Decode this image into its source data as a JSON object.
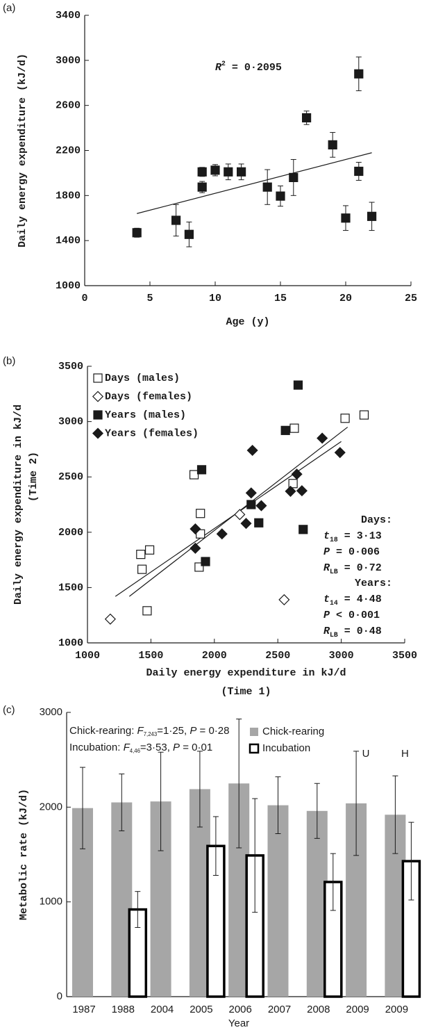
{
  "chart_data": [
    {
      "type": "scatter",
      "panel_label": "(a)",
      "xlabel": "Age (y)",
      "ylabel": "Daily energy expenditure (kJ/d)",
      "annotation": {
        "symbol": "R",
        "sup": "2",
        "text": " = 0·2095"
      },
      "xlim": [
        0,
        25
      ],
      "xticks": [
        0,
        5,
        10,
        15,
        20,
        25
      ],
      "ylim": [
        1000,
        3400
      ],
      "yticks": [
        1000,
        1400,
        1800,
        2200,
        2600,
        3000,
        3400
      ],
      "series": [
        {
          "color": "#1a1a1a",
          "marker": "square",
          "filled": true,
          "x": [
            4,
            7,
            8,
            9,
            9,
            10,
            11,
            12,
            14,
            15,
            16,
            17,
            19,
            20,
            21,
            21,
            22
          ],
          "values": [
            1470,
            1580,
            1455,
            2010,
            1875,
            2025,
            2010,
            2010,
            1875,
            1795,
            1960,
            2490,
            2250,
            1600,
            2880,
            2015,
            1615
          ],
          "errors": [
            40,
            140,
            110,
            40,
            50,
            50,
            70,
            70,
            155,
            90,
            160,
            60,
            110,
            110,
            150,
            80,
            125
          ]
        }
      ],
      "trendlines": [
        {
          "x": [
            4,
            22
          ],
          "values": [
            1640,
            2180
          ]
        }
      ]
    },
    {
      "type": "scatter",
      "panel_label": "(b)",
      "xlabel": [
        "Daily energy expenditure in kJ/d",
        "(Time 1)"
      ],
      "ylabel": [
        "Daily energy expenditure in kJ/d",
        "(Time 2)"
      ],
      "xlim": [
        1000,
        3500
      ],
      "xticks": [
        1000,
        1500,
        2000,
        2500,
        3000,
        3500
      ],
      "ylim": [
        1000,
        3500
      ],
      "yticks": [
        1000,
        1500,
        2000,
        2500,
        3000,
        3500
      ],
      "series": [
        {
          "name": "Days (males)",
          "color": "#1a1a1a",
          "marker": "square",
          "filled": false,
          "x": [
            1420,
            1430,
            1490,
            1470,
            1840,
            1890,
            1890,
            1880,
            2620,
            2630,
            3030,
            3180
          ],
          "values": [
            1800,
            1665,
            1840,
            1290,
            2520,
            2170,
            1985,
            1685,
            2440,
            2940,
            3030,
            3060
          ]
        },
        {
          "name": "Days (females)",
          "color": "#1a1a1a",
          "marker": "diamond",
          "filled": false,
          "x": [
            1180,
            2200,
            2550
          ],
          "values": [
            1215,
            2160,
            1390
          ]
        },
        {
          "name": "Years (males)",
          "color": "#1a1a1a",
          "marker": "square",
          "filled": true,
          "x": [
            1900,
            1930,
            2290,
            2350,
            2560,
            2660,
            2700
          ],
          "values": [
            2565,
            1735,
            2250,
            2085,
            2920,
            3330,
            2025
          ]
        },
        {
          "name": "Years (females)",
          "color": "#1a1a1a",
          "marker": "diamond",
          "filled": true,
          "x": [
            1850,
            1850,
            2060,
            2250,
            2290,
            2300,
            2370,
            2600,
            2650,
            2690,
            2850,
            2990
          ],
          "values": [
            2030,
            1855,
            1985,
            2080,
            2355,
            2740,
            2240,
            2370,
            2525,
            2375,
            2850,
            2720
          ]
        }
      ],
      "trendlines": [
        {
          "x": [
            1220,
            3000
          ],
          "values": [
            1420,
            2820
          ]
        },
        {
          "x": [
            1330,
            3050
          ],
          "values": [
            1420,
            2950
          ]
        }
      ],
      "annotations": [
        {
          "heading": "Days:",
          "lines": [
            {
              "symbol": "t",
              "sub": "18",
              "text": " = 3·13"
            },
            {
              "symbol": "P",
              "text": " = 0·006"
            },
            {
              "symbol": "R",
              "sub": "LB",
              "text": " = 0·72"
            }
          ]
        },
        {
          "heading": "Years:",
          "lines": [
            {
              "symbol": "t",
              "sub": "14",
              "text": " = 4·48"
            },
            {
              "symbol": "P",
              "text": " < 0·001"
            },
            {
              "symbol": "R",
              "sub": "LB",
              "text": " = 0·48"
            }
          ]
        }
      ]
    },
    {
      "type": "bar",
      "panel_label": "(c)",
      "xlabel": "Year",
      "ylabel": "Metabolic rate (kJ/d)",
      "categories": [
        "1987",
        "1988",
        "2004",
        "2005",
        "2006",
        "2007",
        "2008",
        "2009",
        "2009"
      ],
      "ylim": [
        0,
        3000
      ],
      "yticks": [
        0,
        1000,
        2000,
        3000
      ],
      "series": [
        {
          "name": "Chick-rearing",
          "color": "#a6a6a6",
          "filled": true,
          "values": [
            1990,
            2050,
            2060,
            2190,
            2250,
            2020,
            1960,
            2040,
            1920
          ],
          "errors": [
            430,
            300,
            520,
            400,
            680,
            300,
            290,
            550,
            410
          ]
        },
        {
          "name": "Incubation",
          "color": "#000000",
          "filled": false,
          "values": [
            null,
            920,
            null,
            1590,
            1490,
            null,
            1210,
            null,
            1430
          ],
          "errors": [
            null,
            190,
            null,
            310,
            600,
            null,
            300,
            null,
            410
          ]
        }
      ],
      "value_notes": [
        null,
        null,
        null,
        null,
        null,
        null,
        null,
        "U",
        "H"
      ],
      "annotations": [
        {
          "label": "Chick-rearing: ",
          "symbol": "F",
          "sub": "7,243",
          "text": "=1·25, ",
          "p": "P",
          "p_text": " = 0·28"
        },
        {
          "label": "Incubation: ",
          "symbol": "F",
          "sub": "4,46",
          "text": "=3·53, ",
          "p": "P",
          "p_text": " = 0·01"
        }
      ]
    }
  ]
}
